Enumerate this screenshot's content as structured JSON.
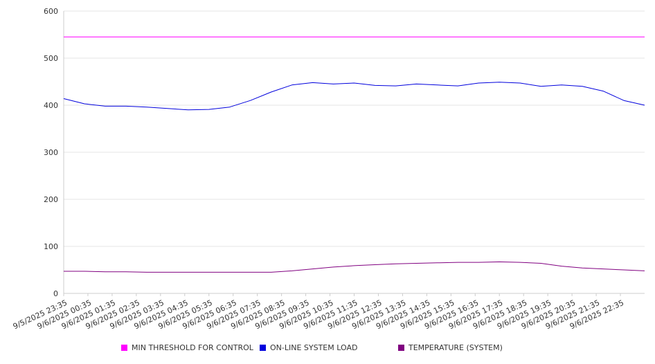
{
  "chart_data": {
    "type": "line",
    "ylim": [
      0,
      600
    ],
    "yticks": [
      0,
      100,
      200,
      300,
      400,
      500,
      600
    ],
    "x_tick_labels": [
      "9/5/2025 23:35",
      "9/6/2025 00:35",
      "9/6/2025 01:35",
      "9/6/2025 02:35",
      "9/6/2025 03:35",
      "9/6/2025 04:35",
      "9/6/2025 05:35",
      "9/6/2025 06:35",
      "9/6/2025 07:35",
      "9/6/2025 08:35",
      "9/6/2025 09:35",
      "9/6/2025 10:35",
      "9/6/2025 11:35",
      "9/6/2025 12:35",
      "9/6/2025 13:35",
      "9/6/2025 14:35",
      "9/6/2025 15:35",
      "9/6/2025 16:35",
      "9/6/2025 17:35",
      "9/6/2025 18:35",
      "9/6/2025 19:35",
      "9/6/2025 20:35",
      "9/6/2025 21:35",
      "9/6/2025 22:35"
    ],
    "grid": true,
    "legend_position": "bottom",
    "series": [
      {
        "name": "MIN THRESHOLD FOR CONTROL",
        "color": "#ff00ff",
        "values": [
          545,
          545,
          545,
          545,
          545,
          545,
          545,
          545,
          545,
          545,
          545,
          545,
          545,
          545,
          545,
          545,
          545,
          545,
          545,
          545,
          545,
          545,
          545,
          545,
          545
        ]
      },
      {
        "name": "ON-LINE SYSTEM LOAD",
        "color": "#0000dd",
        "values": [
          414,
          403,
          398,
          398,
          396,
          393,
          390,
          391,
          396,
          410,
          428,
          443,
          448,
          445,
          447,
          442,
          441,
          445,
          443,
          441,
          447,
          449,
          447,
          440,
          443,
          440,
          430,
          410,
          400
        ]
      },
      {
        "name": "TEMPERATURE (SYSTEM)",
        "color": "#800080",
        "values": [
          47,
          47,
          46,
          46,
          45,
          45,
          45,
          45,
          45,
          45,
          45,
          48,
          52,
          56,
          59,
          61,
          63,
          64,
          65,
          66,
          66,
          67,
          66,
          64,
          58,
          54,
          52,
          50,
          48
        ]
      }
    ]
  }
}
